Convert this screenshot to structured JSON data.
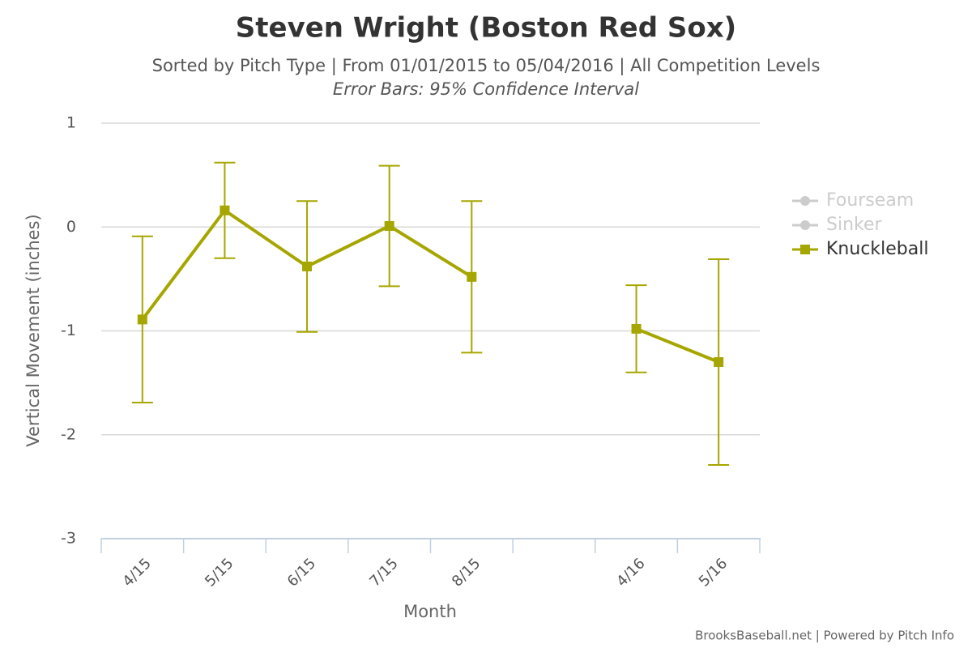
{
  "chart_data": {
    "type": "line",
    "title": "Steven Wright (Boston Red Sox)",
    "subtitle": "Sorted by Pitch Type | From 01/01/2015 to 05/04/2016 | All Competition Levels",
    "note": "Error Bars: 95% Confidence Interval",
    "x_label": "Month",
    "y_label": "Vertical Movement (inches)",
    "credit": "BrooksBaseball.net | Powered by Pitch Info",
    "categories": [
      "4/15",
      "5/15",
      "6/15",
      "7/15",
      "8/15",
      null,
      "4/16",
      "5/16"
    ],
    "ylim": [
      -3,
      1
    ],
    "yticks": [
      1,
      0,
      -1,
      -2,
      -3
    ],
    "grid": true,
    "legend": "right",
    "series": [
      {
        "name": "Fourseam",
        "color": "#cccccc",
        "visible": false,
        "values": [
          null,
          null,
          null,
          null,
          null,
          null,
          null,
          null
        ]
      },
      {
        "name": "Sinker",
        "color": "#cccccc",
        "visible": false,
        "values": [
          null,
          null,
          null,
          null,
          null,
          null,
          null,
          null
        ]
      },
      {
        "name": "Knuckleball",
        "color": "#a6a600",
        "visible": true,
        "values": [
          -0.89,
          0.16,
          -0.38,
          0.01,
          -0.48,
          null,
          -0.98,
          -1.3
        ],
        "errors": [
          0.8,
          0.46,
          0.63,
          0.58,
          0.73,
          null,
          0.42,
          0.99
        ]
      }
    ]
  }
}
